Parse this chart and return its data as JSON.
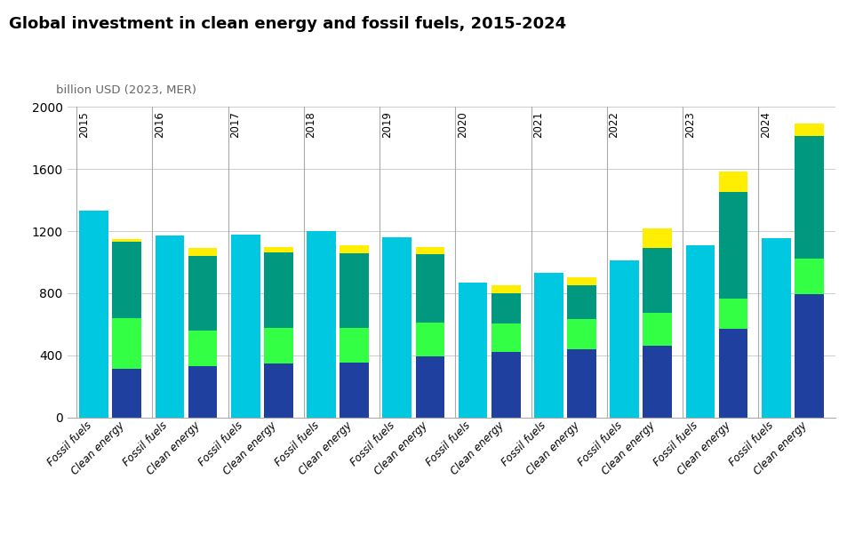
{
  "title": "Global investment in clean energy and fossil fuels, 2015-2024",
  "ylabel": "billion USD (2023, MER)",
  "ylim": [
    0,
    2000
  ],
  "yticks": [
    0,
    400,
    800,
    1200,
    1600,
    2000
  ],
  "years": [
    2015,
    2016,
    2017,
    2018,
    2019,
    2020,
    2021,
    2022,
    2023,
    2024
  ],
  "fossil_fuels": [
    1330,
    1170,
    1175,
    1200,
    1160,
    870,
    930,
    1010,
    1110,
    1155
  ],
  "clean_dark_blue": [
    310,
    330,
    345,
    350,
    390,
    420,
    440,
    460,
    570,
    795
  ],
  "clean_bright_green": [
    330,
    230,
    230,
    225,
    220,
    185,
    195,
    215,
    195,
    230
  ],
  "clean_teal": [
    490,
    480,
    490,
    485,
    440,
    195,
    215,
    415,
    690,
    790
  ],
  "clean_yellow": [
    20,
    50,
    30,
    50,
    50,
    50,
    50,
    130,
    130,
    80
  ],
  "fossil_color": "#00c8e0",
  "color_dark_blue": "#2040a0",
  "color_bright_green": "#33ff44",
  "color_teal": "#009980",
  "color_yellow": "#ffee00",
  "background_color": "#ffffff",
  "grid_color": "#cccccc",
  "title_fontsize": 13,
  "axis_label_fontsize": 9,
  "bar_width": 0.38
}
